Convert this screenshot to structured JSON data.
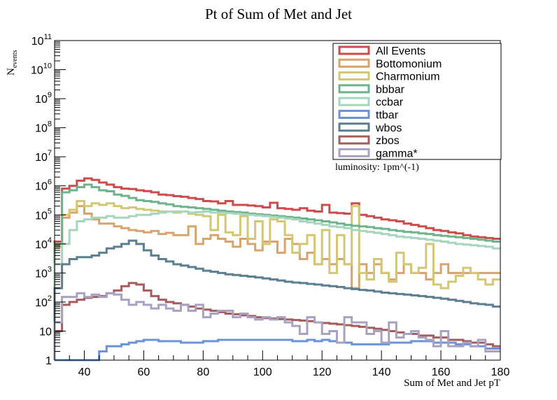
{
  "chart_data": {
    "type": "line",
    "title": "Pt of Sum of Met and Jet",
    "xlabel": "Sum of Met and Jet pT",
    "ylabel": "N",
    "ylabel_sub": "events",
    "annotation": "luminosity: 1pm^(-1)",
    "xlim": [
      30,
      180
    ],
    "ylim": [
      1,
      100000000000
    ],
    "log_y": true,
    "bin_width": 2.5,
    "x_ticks": [
      40,
      60,
      80,
      100,
      120,
      140,
      160,
      180
    ],
    "y_ticks": [
      {
        "value": 1,
        "base": "1",
        "exp": ""
      },
      {
        "value": 10,
        "base": "10",
        "exp": ""
      },
      {
        "value": 100,
        "base": "10",
        "exp": "2"
      },
      {
        "value": 1000,
        "base": "10",
        "exp": "3"
      },
      {
        "value": 10000,
        "base": "10",
        "exp": "4"
      },
      {
        "value": 100000,
        "base": "10",
        "exp": "5"
      },
      {
        "value": 1000000,
        "base": "10",
        "exp": "6"
      },
      {
        "value": 10000000,
        "base": "10",
        "exp": "7"
      },
      {
        "value": 100000000,
        "base": "10",
        "exp": "8"
      },
      {
        "value": 1000000000,
        "base": "10",
        "exp": "9"
      },
      {
        "value": 10000000000,
        "base": "10",
        "exp": "10"
      },
      {
        "value": 100000000000,
        "base": "10",
        "exp": "11"
      }
    ],
    "legend_position": "top-right",
    "series": [
      {
        "name": "All Events",
        "color": "#cc4c4c",
        "values": [
          12000,
          800000,
          1000000,
          1500000,
          1800000,
          1600000,
          1300000,
          1100000,
          900000,
          800000,
          780000,
          700000,
          660000,
          600000,
          500000,
          480000,
          440000,
          420000,
          380000,
          350000,
          300000,
          290000,
          250000,
          300000,
          220000,
          220000,
          210000,
          200000,
          180000,
          260000,
          170000,
          160000,
          150000,
          170000,
          140000,
          130000,
          220000,
          120000,
          115000,
          110000,
          250000,
          100000,
          90000,
          80000,
          70000,
          65000,
          60000,
          50000,
          45000,
          40000,
          35000,
          30000,
          28000,
          25000,
          23000,
          20000,
          18000,
          17000,
          16000,
          15000
        ]
      },
      {
        "name": "Bottomonium",
        "color": "#d9a46b",
        "values": [
          8000,
          80000,
          120000,
          200000,
          110000,
          70000,
          50000,
          50000,
          40000,
          35000,
          30000,
          28000,
          25000,
          28000,
          22000,
          24000,
          20000,
          20000,
          40000,
          10000,
          15000,
          20000,
          15000,
          12000,
          8000,
          15000,
          10000,
          6000,
          12000,
          12000,
          5000,
          15000,
          10000,
          3000,
          5000,
          2000,
          3000,
          2000,
          3000,
          2000,
          300,
          2000,
          1000,
          2000,
          1000,
          600,
          1000,
          2000,
          1000,
          1000,
          600,
          1000,
          2000,
          1000,
          1000,
          1000,
          1000,
          1000,
          1000,
          1000
        ]
      },
      {
        "name": "Charmonium",
        "color": "#d4c774",
        "values": [
          2000,
          100000,
          150000,
          300000,
          200000,
          250000,
          220000,
          250000,
          200000,
          170000,
          180000,
          160000,
          150000,
          140000,
          130000,
          130000,
          120000,
          130000,
          110000,
          100000,
          90000,
          30000,
          100000,
          25000,
          20000,
          90000,
          15000,
          60000,
          10000,
          70000,
          60000,
          20000,
          5000,
          10000,
          20000,
          2000,
          30000,
          1000,
          20000,
          2000,
          200000,
          1000,
          600,
          3000,
          1000,
          500,
          5000,
          2000,
          1000,
          1500,
          10000,
          400,
          300,
          500,
          800,
          1500,
          1000,
          600,
          400,
          600
        ]
      },
      {
        "name": "bbbar",
        "color": "#6fb38c",
        "values": [
          10000,
          600000,
          700000,
          900000,
          1100000,
          900000,
          700000,
          650000,
          500000,
          450000,
          380000,
          320000,
          300000,
          280000,
          250000,
          230000,
          200000,
          190000,
          180000,
          170000,
          160000,
          150000,
          140000,
          130000,
          125000,
          120000,
          110000,
          105000,
          100000,
          95000,
          90000,
          85000,
          80000,
          75000,
          70000,
          65000,
          60000,
          55000,
          50000,
          45000,
          42000,
          40000,
          38000,
          35000,
          33000,
          30000,
          28000,
          26000,
          25000,
          23000,
          22000,
          20000,
          19000,
          18000,
          17000,
          16000,
          15000,
          14000,
          13000,
          12000
        ]
      },
      {
        "name": "ccbar",
        "color": "#a6d6bf",
        "values": [
          2000,
          10000,
          30000,
          60000,
          70000,
          80000,
          80000,
          90000,
          80000,
          80000,
          90000,
          100000,
          100000,
          110000,
          120000,
          130000,
          130000,
          130000,
          120000,
          125000,
          130000,
          120000,
          120000,
          115000,
          110000,
          105000,
          100000,
          95000,
          90000,
          85000,
          80000,
          75000,
          70000,
          60000,
          55000,
          50000,
          45000,
          40000,
          38000,
          35000,
          30000,
          28000,
          26000,
          24000,
          22000,
          20000,
          18000,
          17000,
          16000,
          15000,
          14000,
          13000,
          12000,
          11000,
          10000,
          9500,
          9000,
          8500,
          8000,
          7000
        ]
      },
      {
        "name": "ttbar",
        "color": "#6b93d6",
        "values": [
          1,
          1,
          1,
          1,
          1,
          1,
          2,
          3,
          3,
          3.5,
          4,
          4.5,
          5,
          5,
          4.5,
          4.5,
          4.5,
          4,
          4,
          4,
          4.5,
          4.5,
          5,
          5,
          5,
          5,
          5,
          5,
          5,
          5,
          5,
          5,
          4.5,
          4.5,
          5,
          4.5,
          5,
          4.5,
          4,
          4,
          3.5,
          3.5,
          3.5,
          3.5,
          3.5,
          4,
          4,
          4,
          4.5,
          4.5,
          4.5,
          4,
          4,
          4,
          3.5,
          3.5,
          3,
          3,
          2.5,
          2.5
        ]
      },
      {
        "name": "wbos",
        "color": "#5c7f8f",
        "values": [
          300,
          2000,
          3000,
          3500,
          3500,
          4000,
          5000,
          7000,
          8000,
          10000,
          13000,
          10000,
          6000,
          4000,
          3000,
          2500,
          2000,
          1800,
          1600,
          1400,
          1200,
          1100,
          1000,
          900,
          850,
          800,
          750,
          700,
          650,
          600,
          550,
          500,
          470,
          450,
          420,
          400,
          370,
          350,
          330,
          300,
          280,
          260,
          250,
          230,
          210,
          200,
          190,
          180,
          170,
          160,
          150,
          140,
          130,
          120,
          110,
          100,
          90,
          85,
          80,
          70
        ]
      },
      {
        "name": "zbos",
        "color": "#a65c5c",
        "values": [
          10,
          80,
          100,
          120,
          140,
          150,
          160,
          200,
          250,
          350,
          450,
          400,
          250,
          160,
          120,
          100,
          90,
          80,
          70,
          60,
          55,
          50,
          45,
          40,
          38,
          35,
          33,
          30,
          28,
          27,
          26,
          25,
          24,
          23,
          22,
          20,
          19,
          18,
          17,
          16,
          15,
          14,
          13,
          12,
          11,
          10,
          9,
          8,
          8,
          7,
          7,
          6,
          6,
          5,
          5,
          4.5,
          4,
          4,
          3.5,
          3
        ]
      },
      {
        "name": "gamma*",
        "color": "#a8a2c2",
        "values": [
          20,
          150,
          150,
          200,
          150,
          180,
          150,
          200,
          180,
          120,
          80,
          100,
          80,
          60,
          80,
          60,
          50,
          80,
          50,
          80,
          30,
          40,
          50,
          50,
          30,
          40,
          30,
          25,
          30,
          25,
          30,
          20,
          15,
          8,
          30,
          20,
          8,
          10,
          4,
          30,
          20,
          20,
          8,
          10,
          4,
          20,
          6,
          8,
          10,
          6,
          5,
          3,
          10,
          3,
          3,
          4,
          3,
          5,
          2,
          2
        ]
      }
    ]
  }
}
